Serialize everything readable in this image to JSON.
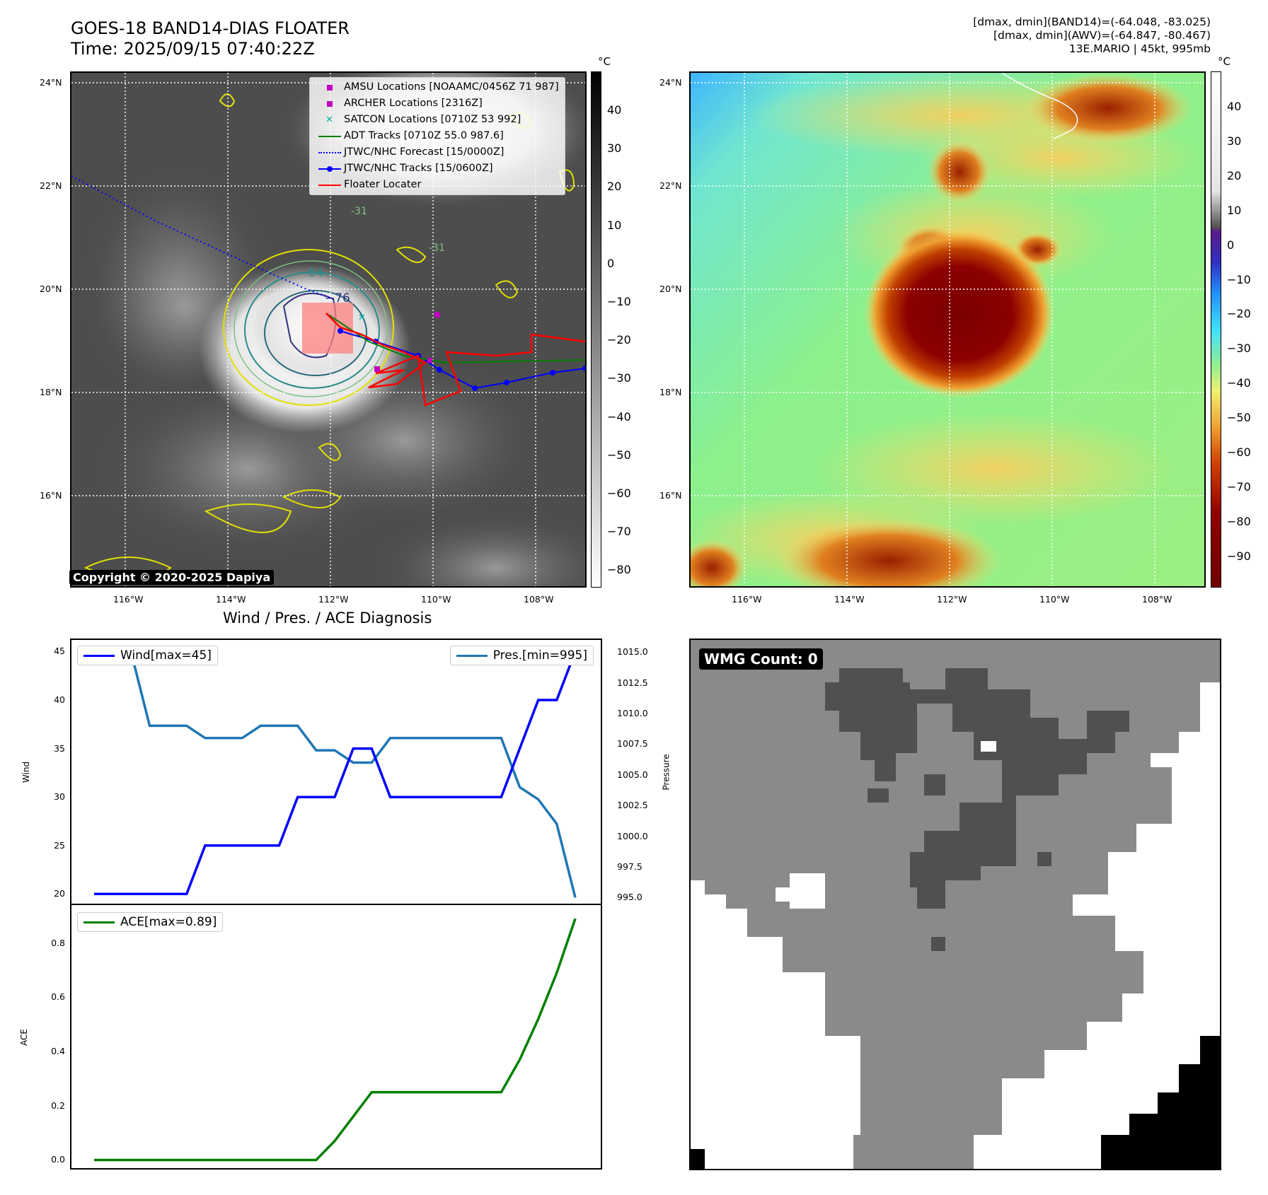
{
  "header": {
    "title_line1": "GOES-18 BAND14-DIAS FLOATER",
    "title_line2": "Time: 2025/09/15 07:40:22Z",
    "info_line1": "[dmax, dmin](BAND14)=(-64.048, -83.025)",
    "info_line2": "[dmax, dmin](AWV)=(-64.847, -80.467)",
    "info_line3": "13E.MARIO | 45kt, 995mb"
  },
  "map": {
    "lat_labels": [
      "24°N",
      "22°N",
      "20°N",
      "18°N",
      "16°N"
    ],
    "lon_labels": [
      "116°W",
      "114°W",
      "112°W",
      "110°W",
      "108°W"
    ],
    "copyright": "Copyright © 2020-2025 Dapiya",
    "contour_labels": [
      "−76",
      "−64",
      "-31",
      "-31"
    ]
  },
  "ir_colorbar": {
    "unit": "°C",
    "ticks": [
      "40",
      "30",
      "20",
      "10",
      "0",
      "−10",
      "−20",
      "−30",
      "−40",
      "−50",
      "−60",
      "−70",
      "−80"
    ]
  },
  "awv_colorbar": {
    "unit": "°C",
    "ticks": [
      "40",
      "30",
      "20",
      "10",
      "0",
      "−10",
      "−20",
      "−30",
      "−40",
      "−50",
      "−60",
      "−70",
      "−80",
      "−90"
    ]
  },
  "map_legend": [
    {
      "label": "AMSU Locations [NOAAMC/0456Z 71 987]",
      "color": "#c000c0",
      "symbol": "square"
    },
    {
      "label": "ARCHER Locations [2316Z]",
      "color": "#c000c0",
      "symbol": "square"
    },
    {
      "label": "SATCON Locations [0710Z 53 992]",
      "color": "#00b0b0",
      "symbol": "x"
    },
    {
      "label": "ADT Tracks [0710Z 55.0 987.6]",
      "color": "#008000",
      "symbol": "line"
    },
    {
      "label": "JTWC/NHC Forecast [15/0000Z]",
      "color": "#0000ff",
      "symbol": "dotted"
    },
    {
      "label": "JTWC/NHC Tracks [15/0600Z]",
      "color": "#0000ff",
      "symbol": "line-dot"
    },
    {
      "label": "Floater Locater",
      "color": "#ff0000",
      "symbol": "line"
    }
  ],
  "diagnosis": {
    "title": "Wind / Pres. / ACE Diagnosis",
    "wind_label": "Wind",
    "pressure_label": "Pressure",
    "ace_label": "ACE",
    "wind_legend": "Wind[max=45]",
    "pres_legend": "Pres.[min=995]",
    "ace_legend": "ACE[max=0.89]",
    "wind_ticks": [
      "45",
      "40",
      "35",
      "30",
      "25",
      "20"
    ],
    "pres_ticks": [
      "1015.0",
      "1012.5",
      "1010.0",
      "1007.5",
      "1005.0",
      "1002.5",
      "1000.0",
      "997.5",
      "995.0"
    ],
    "ace_ticks": [
      "0.8",
      "0.6",
      "0.4",
      "0.2",
      "0.0"
    ]
  },
  "wmg": {
    "count_label": "WMG Count: 0"
  },
  "chart_data": [
    {
      "type": "line",
      "title": "Wind / Pres. / ACE Diagnosis",
      "ylabel": "Wind",
      "ylim": [
        19,
        46.2
      ],
      "series": [
        {
          "name": "Wind[max=45]",
          "color": "#0000ff",
          "values": [
            20,
            20,
            20,
            20,
            20,
            20,
            25,
            25,
            25,
            25,
            25,
            30,
            30,
            30,
            35,
            35,
            30,
            30,
            30,
            30,
            30,
            30,
            30,
            35,
            40,
            40,
            45
          ]
        }
      ]
    },
    {
      "type": "line",
      "ylabel": "Pressure",
      "ylim": [
        994.5,
        1016.0
      ],
      "series": [
        {
          "name": "Pres.[min=995]",
          "color": "#1f77b4",
          "values": [
            1015,
            1015,
            1015,
            1009,
            1009,
            1009,
            1008,
            1008,
            1008,
            1009,
            1009,
            1009,
            1007,
            1007,
            1006,
            1006,
            1008,
            1008,
            1008,
            1008,
            1008,
            1008,
            1008,
            1004,
            1003,
            1001,
            995
          ]
        }
      ]
    },
    {
      "type": "line",
      "ylabel": "ACE",
      "ylim": [
        -0.03,
        0.94
      ],
      "series": [
        {
          "name": "ACE[max=0.89]",
          "color": "#008000",
          "values": [
            0,
            0,
            0,
            0,
            0,
            0,
            0,
            0,
            0,
            0,
            0,
            0,
            0,
            0.07,
            0.16,
            0.25,
            0.25,
            0.25,
            0.25,
            0.25,
            0.25,
            0.25,
            0.25,
            0.37,
            0.52,
            0.69,
            0.89
          ]
        }
      ]
    }
  ]
}
